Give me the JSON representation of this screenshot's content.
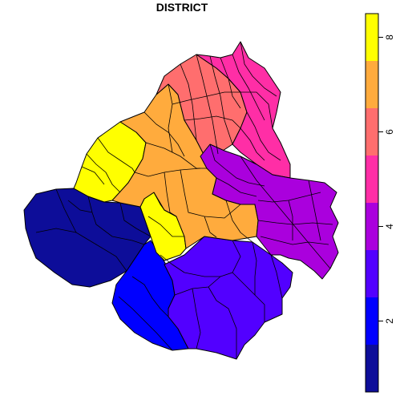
{
  "map": {
    "title": "DISTRICT",
    "legend": {
      "min": 0.5,
      "max": 8.5,
      "ticks": [
        2,
        4,
        6,
        8
      ],
      "colors": [
        "#0d0d99",
        "#0000ff",
        "#5200ff",
        "#aa00dd",
        "#ff2ea6",
        "#ff6e6e",
        "#ffab3d",
        "#ffff00"
      ]
    },
    "districts": [
      1,
      2,
      3,
      4,
      5,
      6,
      7,
      8
    ]
  }
}
